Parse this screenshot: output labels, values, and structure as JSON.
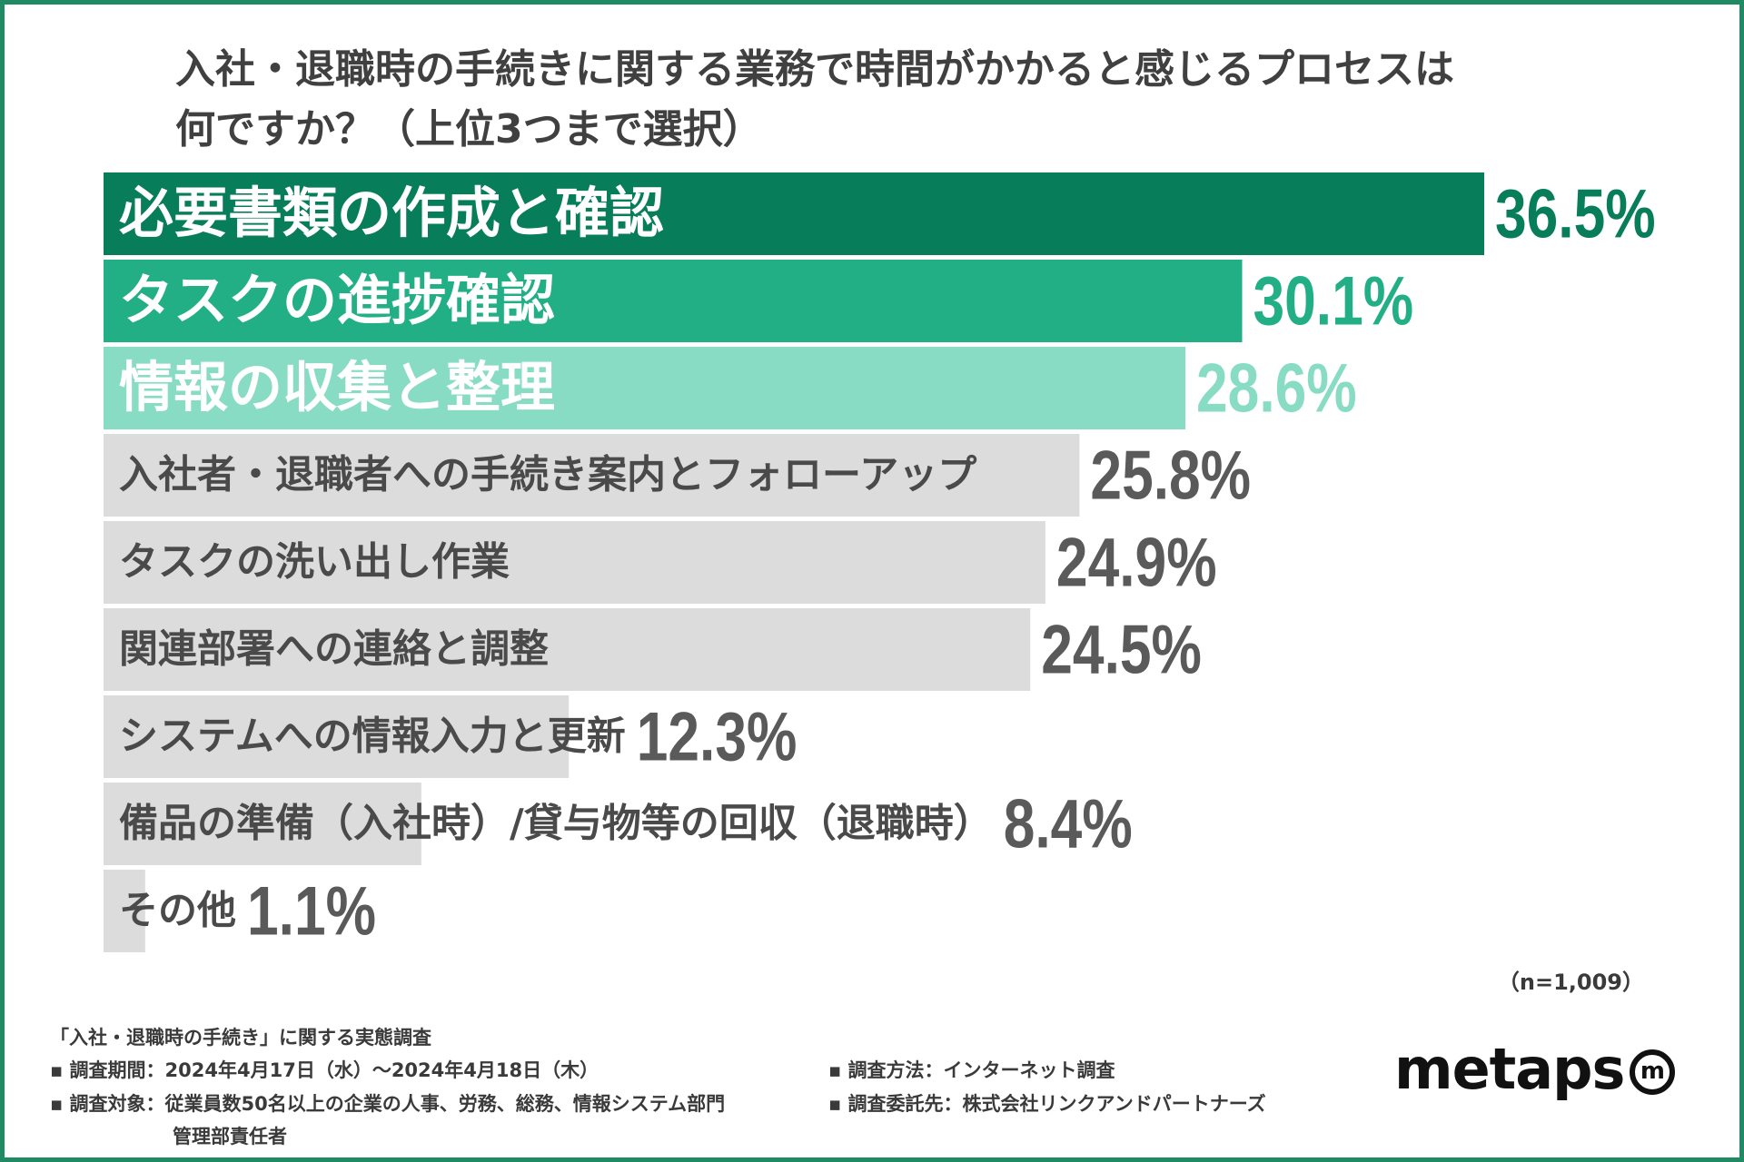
{
  "title_lines": [
    "入社・退職時の手続きに関する業務で時間がかかると感じるプロセスは",
    "何ですか？（上位3つまで選択）"
  ],
  "chart_data": {
    "type": "bar",
    "orientation": "horizontal",
    "title": "入社・退職時の手続きに関する業務で時間がかかると感じるプロセスは何ですか？（上位3つまで選択）",
    "categories": [
      "必要書類の作成と確認",
      "タスクの進捗確認",
      "情報の収集と整理",
      "入社者・退職者への手続き案内とフォローアップ",
      "タスクの洗い出し作業",
      "関連部署への連絡と調整",
      "システムへの情報入力と更新",
      "備品の準備（入社時）/貸与物等の回収（退職時）",
      "その他"
    ],
    "values": [
      36.5,
      30.1,
      28.6,
      25.8,
      24.9,
      24.5,
      12.3,
      8.4,
      1.1
    ],
    "value_labels": [
      "36.5%",
      "30.1%",
      "28.6%",
      "25.8%",
      "24.9%",
      "24.5%",
      "12.3%",
      "8.4%",
      "1.1%"
    ],
    "unit": "%",
    "xlim": [
      0,
      36.5
    ],
    "bar_colors": [
      "#077d59",
      "#23af86",
      "#87dcc3",
      "#dcdcdc",
      "#dcdcdc",
      "#dcdcdc",
      "#dcdcdc",
      "#dcdcdc",
      "#dcdcdc"
    ],
    "label_colors": [
      "#ffffff",
      "#ffffff",
      "#ffffff",
      "#4a4a4a",
      "#4a4a4a",
      "#4a4a4a",
      "#4a4a4a",
      "#4a4a4a",
      "#4a4a4a"
    ],
    "value_colors": [
      "#077d59",
      "#23af86",
      "#87dcc3",
      "#5a5a5a",
      "#5a5a5a",
      "#5a5a5a",
      "#5a5a5a",
      "#5a5a5a",
      "#5a5a5a"
    ]
  },
  "sample_note": "（n=1,009）",
  "survey": {
    "title": "「入社・退職時の手続き」に関する実態調査",
    "period": "▪ 調査期間：2024年4月17日（水）〜2024年4月18日（木）",
    "target": "▪ 調査対象：従業員数50名以上の企業の人事、労務、総務、情報システム部門",
    "target_cont": "管理部責任者",
    "method": "▪ 調査方法：インターネット調査",
    "client": "▪ 調査委託先：株式会社リンクアンドパートナーズ"
  },
  "logo": {
    "word": "metaps",
    "mark": "m"
  },
  "colors": {
    "frame": "#1f8a63",
    "accent": "#077d59"
  }
}
